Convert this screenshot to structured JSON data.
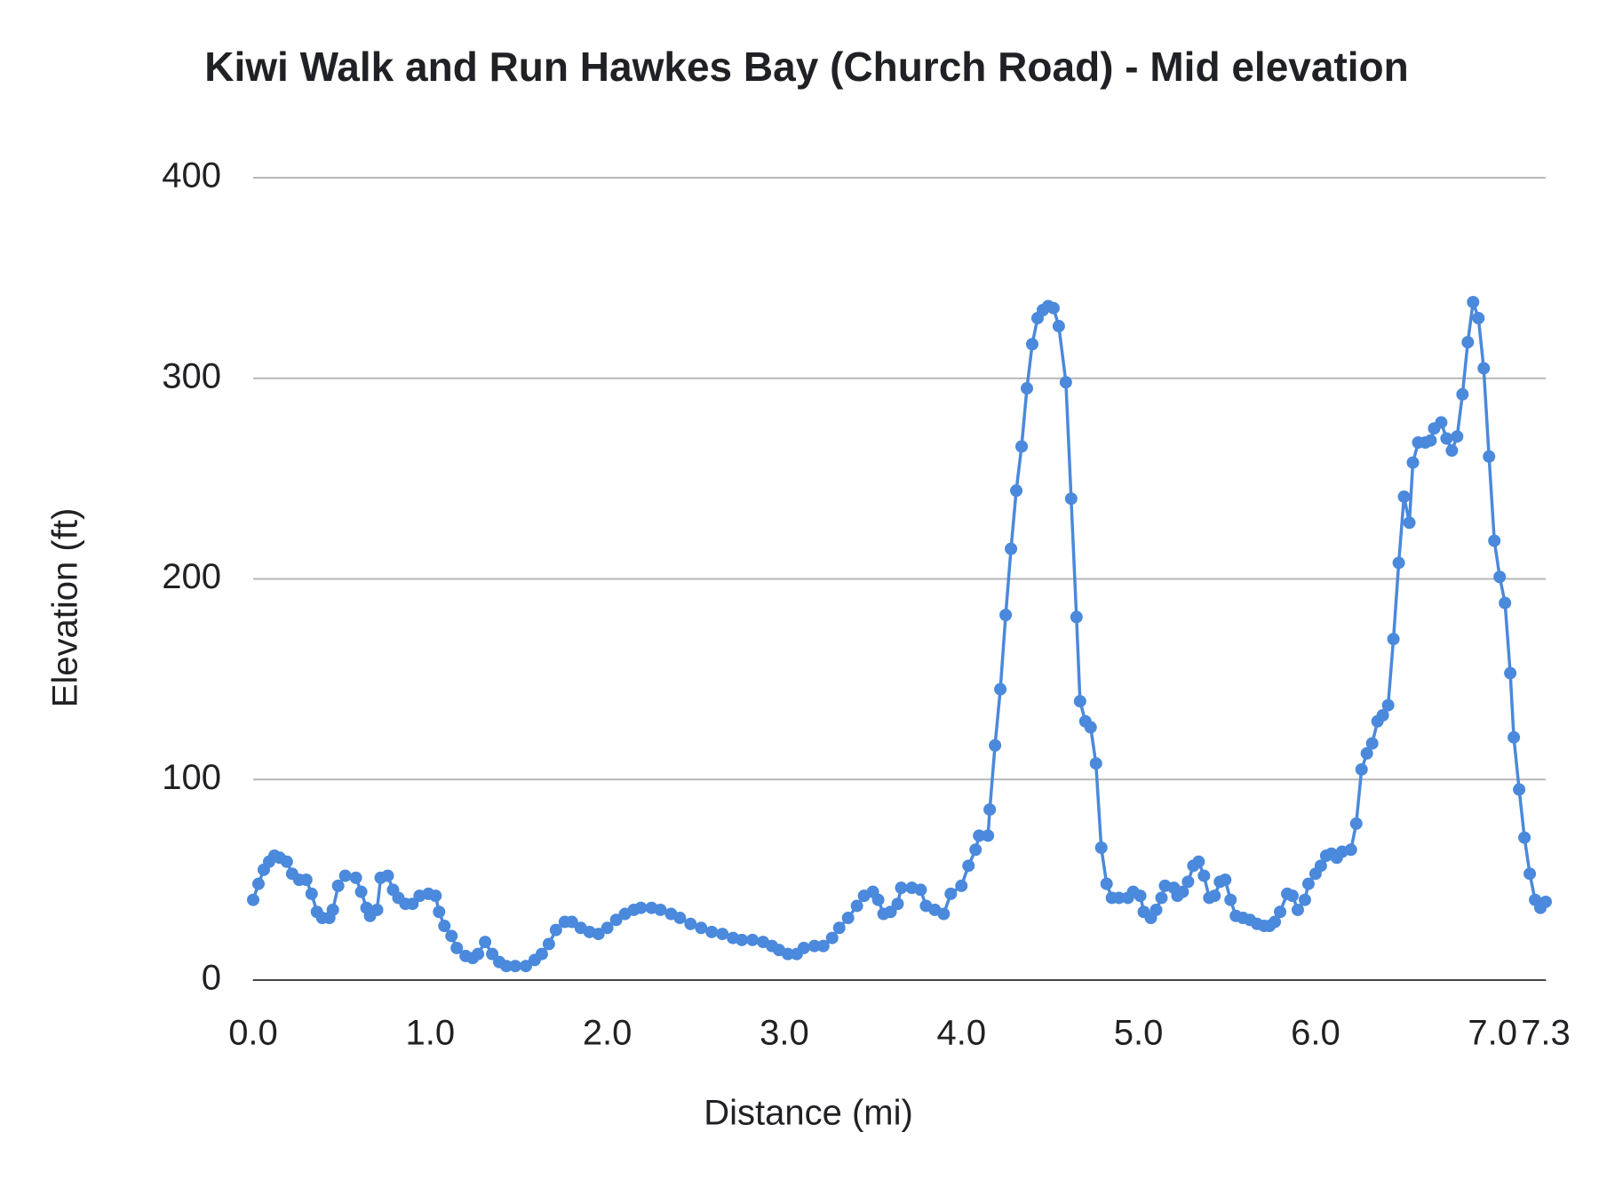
{
  "chart_data": {
    "type": "line",
    "title": "Kiwi Walk and Run Hawkes Bay (Church Road) - Mid elevation",
    "x_label": "Distance (mi)",
    "y_label": "Elevation (ft)",
    "color": "#4a89dc",
    "grid": true,
    "xlim": [
      0,
      7.3
    ],
    "ylim": [
      0,
      400
    ],
    "xticks": [
      {
        "value": 0,
        "label": "0.0"
      },
      {
        "value": 1,
        "label": "1.0"
      },
      {
        "value": 2,
        "label": "2.0"
      },
      {
        "value": 3,
        "label": "3.0"
      },
      {
        "value": 4,
        "label": "4.0"
      },
      {
        "value": 5,
        "label": "5.0"
      },
      {
        "value": 6,
        "label": "6.0"
      },
      {
        "value": 7,
        "label": "7.0"
      },
      7.3
    ],
    "yticks": [
      0,
      100,
      200,
      300,
      400
    ],
    "x": [
      0.0,
      0.03,
      0.06,
      0.09,
      0.12,
      0.15,
      0.19,
      0.22,
      0.26,
      0.3,
      0.33,
      0.36,
      0.39,
      0.43,
      0.45,
      0.48,
      0.52,
      0.58,
      0.61,
      0.64,
      0.66,
      0.7,
      0.72,
      0.76,
      0.79,
      0.82,
      0.86,
      0.9,
      0.94,
      0.99,
      1.03,
      1.05,
      1.08,
      1.12,
      1.15,
      1.2,
      1.24,
      1.27,
      1.31,
      1.35,
      1.39,
      1.43,
      1.48,
      1.54,
      1.59,
      1.63,
      1.67,
      1.71,
      1.76,
      1.8,
      1.85,
      1.9,
      1.95,
      2.0,
      2.05,
      2.1,
      2.15,
      2.19,
      2.25,
      2.3,
      2.36,
      2.41,
      2.47,
      2.53,
      2.59,
      2.65,
      2.71,
      2.76,
      2.82,
      2.88,
      2.93,
      2.97,
      3.02,
      3.07,
      3.11,
      3.17,
      3.22,
      3.27,
      3.31,
      3.36,
      3.41,
      3.45,
      3.5,
      3.53,
      3.56,
      3.6,
      3.64,
      3.66,
      3.72,
      3.77,
      3.8,
      3.85,
      3.9,
      3.94,
      4.0,
      4.04,
      4.08,
      4.1,
      4.15,
      4.16,
      4.19,
      4.22,
      4.25,
      4.28,
      4.31,
      4.34,
      4.37,
      4.4,
      4.43,
      4.46,
      4.49,
      4.52,
      4.55,
      4.59,
      4.62,
      4.65,
      4.67,
      4.7,
      4.73,
      4.76,
      4.79,
      4.82,
      4.85,
      4.89,
      4.94,
      4.97,
      5.01,
      5.03,
      5.07,
      5.1,
      5.13,
      5.15,
      5.2,
      5.22,
      5.25,
      5.28,
      5.31,
      5.34,
      5.37,
      5.4,
      5.43,
      5.46,
      5.49,
      5.52,
      5.55,
      5.59,
      5.63,
      5.67,
      5.71,
      5.74,
      5.77,
      5.8,
      5.84,
      5.87,
      5.9,
      5.94,
      5.96,
      6.0,
      6.03,
      6.06,
      6.09,
      6.12,
      6.15,
      6.2,
      6.23,
      6.26,
      6.29,
      6.32,
      6.35,
      6.38,
      6.41,
      6.44,
      6.47,
      6.5,
      6.53,
      6.55,
      6.58,
      6.62,
      6.65,
      6.67,
      6.71,
      6.74,
      6.77,
      6.8,
      6.83,
      6.86,
      6.89,
      6.92,
      6.95,
      6.98,
      7.01,
      7.04,
      7.07,
      7.1,
      7.12,
      7.15,
      7.18,
      7.21,
      7.24,
      7.27,
      7.3
    ],
    "values": [
      40,
      48,
      55,
      59,
      62,
      61,
      59,
      53,
      50,
      50,
      43,
      34,
      31,
      31,
      35,
      47,
      52,
      51,
      44,
      36,
      32,
      35,
      51,
      52,
      45,
      41,
      38,
      38,
      42,
      43,
      42,
      34,
      27,
      22,
      16,
      12,
      11,
      13,
      19,
      13,
      9,
      7,
      7,
      7,
      10,
      13,
      18,
      25,
      29,
      29,
      26,
      24,
      23,
      26,
      30,
      33,
      35,
      36,
      36,
      35,
      33,
      31,
      28,
      26,
      24,
      23,
      21,
      20,
      20,
      19,
      17,
      15,
      13,
      13,
      16,
      17,
      17,
      21,
      26,
      31,
      37,
      42,
      44,
      40,
      33,
      34,
      38,
      46,
      46,
      45,
      37,
      35,
      33,
      43,
      47,
      57,
      65,
      72,
      72,
      85,
      117,
      145,
      182,
      215,
      244,
      266,
      295,
      317,
      330,
      334,
      336,
      335,
      326,
      298,
      240,
      181,
      139,
      129,
      126,
      108,
      66,
      48,
      41,
      41,
      41,
      44,
      42,
      34,
      31,
      35,
      41,
      47,
      46,
      42,
      44,
      49,
      57,
      59,
      52,
      41,
      42,
      49,
      50,
      40,
      32,
      31,
      30,
      28,
      27,
      27,
      29,
      34,
      43,
      42,
      35,
      40,
      48,
      53,
      57,
      62,
      63,
      61,
      64,
      65,
      78,
      105,
      113,
      118,
      129,
      132,
      137,
      170,
      208,
      241,
      228,
      258,
      268,
      268,
      269,
      275,
      278,
      270,
      264,
      271,
      292,
      318,
      338,
      330,
      305,
      261,
      219,
      201,
      188,
      153,
      121,
      95,
      71,
      53,
      40,
      36,
      39
    ]
  }
}
